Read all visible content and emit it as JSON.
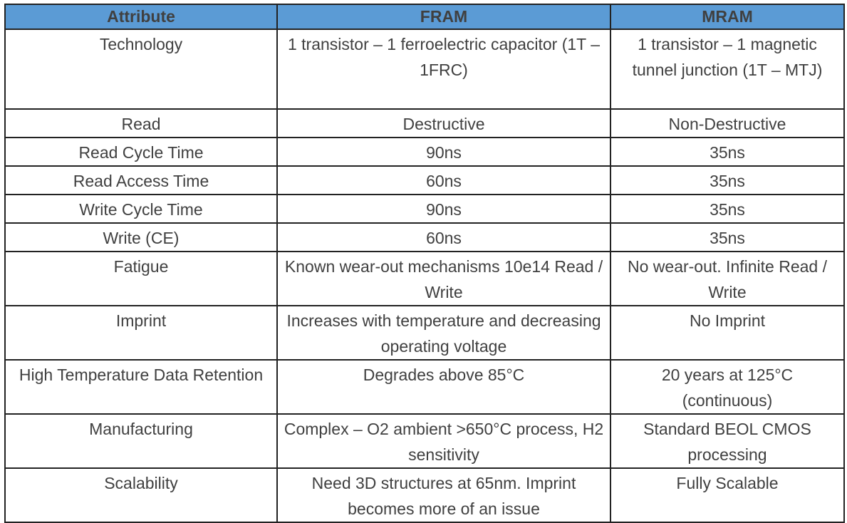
{
  "colors": {
    "header_bg": "#5b9bd5",
    "text": "#404040",
    "border": "#222222"
  },
  "headers": [
    "Attribute",
    "FRAM",
    "MRAM"
  ],
  "rows": [
    {
      "attribute": "Technology",
      "fram": "1 transistor – 1 ferroelectric capacitor (1T – 1FRC)",
      "mram": "1 transistor – 1 magnetic tunnel junction (1T – MTJ)",
      "h": 108
    },
    {
      "attribute": "Read",
      "fram": "Destructive",
      "mram": "Non-Destructive",
      "h": 36
    },
    {
      "attribute": "Read Cycle Time",
      "fram": "90ns",
      "mram": "35ns",
      "h": 35
    },
    {
      "attribute": "Read Access Time",
      "fram": "60ns",
      "mram": "35ns",
      "h": 35
    },
    {
      "attribute": "Write Cycle Time",
      "fram": "90ns",
      "mram": "35ns",
      "h": 35
    },
    {
      "attribute": "Write (CE)",
      "fram": "60ns",
      "mram": "35ns",
      "h": 35
    },
    {
      "attribute": "Fatigue",
      "fram": "Known wear-out mechanisms 10e14 Read / Write",
      "mram": "No wear-out. Infinite Read / Write",
      "h": 71
    },
    {
      "attribute": "Imprint",
      "fram": "Increases with temperature and decreasing operating voltage",
      "mram": "No Imprint",
      "h": 72
    },
    {
      "attribute": "High Temperature Data Retention",
      "fram": "Degrades above 85°C",
      "mram": "20 years at 125°C (continuous)",
      "h": 71
    },
    {
      "attribute": "Manufacturing",
      "fram": "Complex – O2 ambient >650°C process, H2 sensitivity",
      "mram": "Standard BEOL CMOS processing",
      "h": 72
    },
    {
      "attribute": "Scalability",
      "fram": "Need 3D structures at 65nm. Imprint becomes more of an issue",
      "mram": "Fully Scalable",
      "h": 70
    }
  ]
}
